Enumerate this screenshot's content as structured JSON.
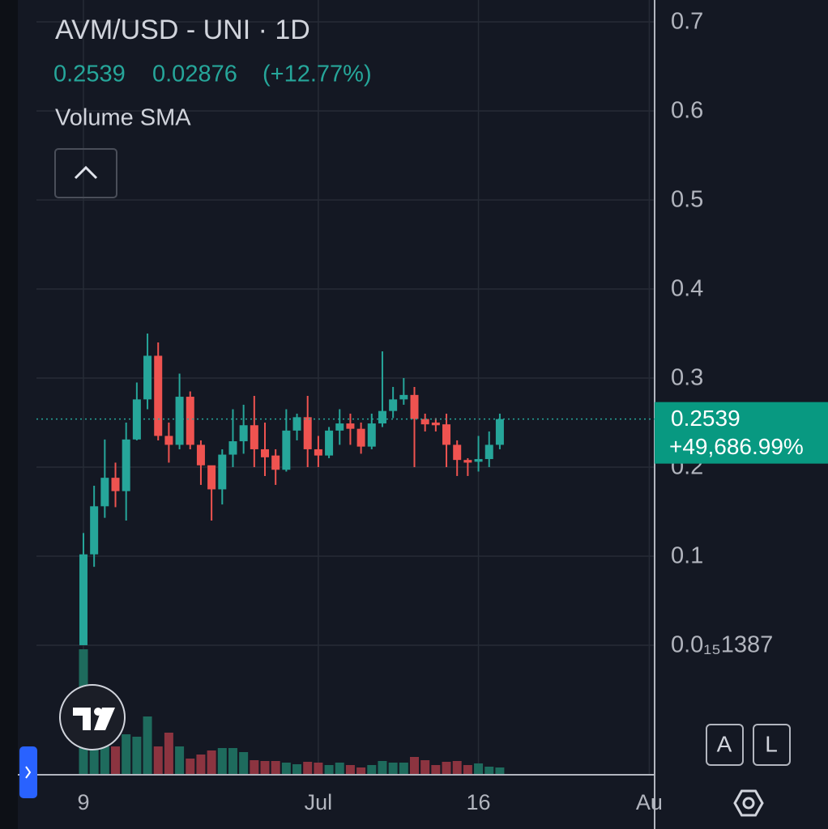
{
  "header": {
    "title": "AVM/USD - UNI · 1D",
    "price": "0.2539",
    "change": "0.02876",
    "change_percent": "(+12.77%)",
    "indicator": "Volume SMA"
  },
  "buttons": {
    "auto": "A",
    "log": "L"
  },
  "chart_data": {
    "type": "candlestick",
    "open": [
      0.0,
      0.102,
      0.156,
      0.188,
      0.173,
      0.231,
      0.276,
      0.325,
      0.235,
      0.225,
      0.279,
      0.225,
      0.202,
      0.175,
      0.214,
      0.229,
      0.247,
      0.22,
      0.213,
      0.197,
      0.241,
      0.256,
      0.22,
      0.213,
      0.241,
      0.249,
      0.243,
      0.223,
      0.249,
      0.263,
      0.276,
      0.281,
      0.254,
      0.25,
      0.248,
      0.225,
      0.208,
      0.206,
      0.209,
      0.225
    ],
    "high": [
      0.126,
      0.179,
      0.231,
      0.205,
      0.25,
      0.295,
      0.35,
      0.34,
      0.25,
      0.305,
      0.285,
      0.23,
      0.2,
      0.22,
      0.265,
      0.27,
      0.28,
      0.25,
      0.22,
      0.265,
      0.26,
      0.28,
      0.235,
      0.245,
      0.265,
      0.26,
      0.25,
      0.26,
      0.33,
      0.29,
      0.3,
      0.29,
      0.26,
      0.255,
      0.26,
      0.23,
      0.21,
      0.235,
      0.24,
      0.26
    ],
    "low": [
      0.0,
      0.088,
      0.143,
      0.155,
      0.14,
      0.23,
      0.265,
      0.23,
      0.205,
      0.22,
      0.22,
      0.18,
      0.14,
      0.158,
      0.2,
      0.215,
      0.2,
      0.19,
      0.18,
      0.195,
      0.23,
      0.2,
      0.2,
      0.21,
      0.225,
      0.225,
      0.215,
      0.22,
      0.245,
      0.255,
      0.27,
      0.2,
      0.24,
      0.24,
      0.2,
      0.19,
      0.19,
      0.195,
      0.2,
      0.22
    ],
    "close": [
      0.102,
      0.156,
      0.188,
      0.173,
      0.231,
      0.276,
      0.325,
      0.235,
      0.225,
      0.279,
      0.225,
      0.202,
      0.175,
      0.214,
      0.229,
      0.247,
      0.22,
      0.211,
      0.197,
      0.241,
      0.256,
      0.22,
      0.213,
      0.241,
      0.249,
      0.243,
      0.223,
      0.249,
      0.263,
      0.276,
      0.281,
      0.254,
      0.248,
      0.247,
      0.225,
      0.208,
      0.205,
      0.209,
      0.225,
      0.2539
    ],
    "volume": [
      155,
      65,
      35,
      35,
      50,
      47,
      72,
      35,
      52,
      35,
      20,
      25,
      30,
      33,
      33,
      28,
      18,
      17,
      17,
      15,
      13,
      16,
      15,
      12,
      15,
      12,
      9,
      12,
      17,
      15,
      15,
      22,
      18,
      12,
      16,
      17,
      12,
      14,
      10,
      9
    ],
    "up_color": "#26a69a",
    "down_color": "#ef5350",
    "ylim": [
      -0.1455,
      0.7245
    ],
    "yticks": [
      0.7,
      0.6,
      0.5,
      0.4,
      0.3,
      0.2,
      0.1,
      {
        "value": 1.387e-16,
        "label": "0.0₁₅1387"
      }
    ],
    "xlim": [
      -4.4,
      53.5
    ],
    "xticks": [
      {
        "value": 0,
        "label": "9"
      },
      {
        "value": 22,
        "label": "Jul"
      },
      {
        "value": 37,
        "label": "16"
      },
      {
        "value": 53,
        "label": "Au"
      }
    ],
    "grid": true,
    "last_price": 0.2539,
    "last_price_label": "0.2539",
    "total_change": "+49,686.99%"
  }
}
